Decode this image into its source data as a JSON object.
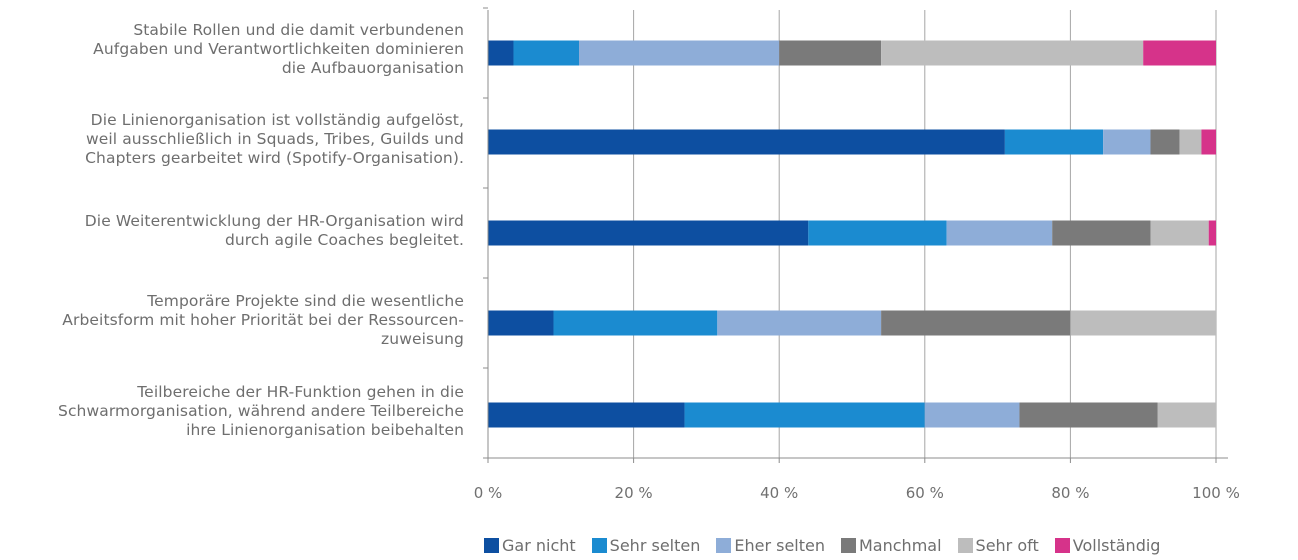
{
  "chart_data": {
    "type": "bar",
    "orientation": "horizontal",
    "stacked": true,
    "categories": [
      "Stabile Rollen und die damit verbundenen Aufgaben und Verantwortlichkeiten dominieren die Aufbauorganisation",
      "Die Linienorganisation ist vollständig aufgelöst, weil ausschließlich in Squads, Tribes, Guilds und Chapters gearbeitet wird (Spotify-Organisation).",
      "Die Weiterentwicklung der HR-Organisation wird durch agile Coaches begleitet.",
      "Temporäre Projekte sind die wesentliche Arbeitsform mit hoher Priorität bei der Ressourcen-zuweisung",
      "Teilbereiche der HR-Funktion gehen in die Schwarmorganisation, während andere Teilbereiche ihre Linienorganisation beibehalten"
    ],
    "category_lines": [
      [
        "Stabile Rollen und die damit verbundenen",
        "Aufgaben und Verantwortlichkeiten dominieren",
        "die Aufbauorganisation"
      ],
      [
        "Die Linienorganisation ist vollständig aufgelöst,",
        "weil ausschließlich in Squads, Tribes, Guilds und",
        "Chapters gearbeitet wird (Spotify-Organisation)."
      ],
      [
        "Die Weiterentwicklung der HR-Organisation wird",
        "durch agile Coaches begleitet."
      ],
      [
        "Temporäre Projekte sind die wesentliche",
        "Arbeitsform mit hoher Priorität bei der Ressourcen-",
        "zuweisung"
      ],
      [
        "Teilbereiche der HR-Funktion gehen in die",
        "Schwarmorganisation, während andere Teilbereiche",
        "ihre Linienorganisation beibehalten"
      ]
    ],
    "series": [
      {
        "name": "Gar nicht",
        "color": "#0d4fa1",
        "values": [
          3.5,
          71,
          44,
          9,
          27
        ]
      },
      {
        "name": "Sehr selten",
        "color": "#1b8bd0",
        "values": [
          9,
          13.5,
          19,
          22.5,
          33
        ]
      },
      {
        "name": "Eher selten",
        "color": "#8eadd8",
        "values": [
          27.5,
          6.5,
          14.5,
          22.5,
          13
        ]
      },
      {
        "name": "Manchmal",
        "color": "#7a7a7a",
        "values": [
          14,
          4,
          13.5,
          26,
          19
        ]
      },
      {
        "name": "Sehr oft",
        "color": "#bdbdbd",
        "values": [
          36,
          3,
          8,
          20,
          8
        ]
      },
      {
        "name": "Vollständig",
        "color": "#d6338a",
        "values": [
          10,
          2,
          1,
          0,
          0
        ]
      }
    ],
    "x_ticks": [
      "0 %",
      "20 %",
      "40 %",
      "60 %",
      "80 %",
      "100 %"
    ],
    "x_tick_values": [
      0,
      20,
      40,
      60,
      80,
      100
    ],
    "xlim": [
      0,
      100
    ],
    "grid": true,
    "legend_position": "bottom-right"
  }
}
